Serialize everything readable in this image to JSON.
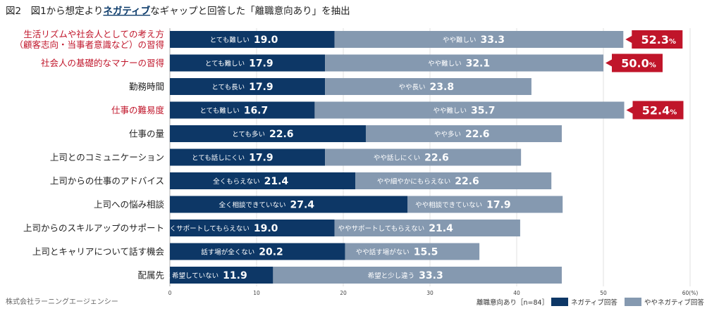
{
  "title": {
    "prefix": "図2　図1から想定より",
    "emphasis": "ネガティブ",
    "suffix": "なギャップと回答した「離職意向あり」を抽出"
  },
  "footer": {
    "source": "株式会社ラーニングエージェンシー"
  },
  "legend": {
    "sample": "離職意向あり［n=84］",
    "items": [
      {
        "name": "ネガティブ回答",
        "color": "#0d3766"
      },
      {
        "name": "ややネガティブ回答",
        "color": "#8599b0"
      }
    ]
  },
  "colors": {
    "strong": "#0d3766",
    "mild": "#8599b0",
    "highlight": "#c0152a",
    "grid": "#d9d9d9"
  },
  "chart_data": {
    "type": "bar",
    "orientation": "horizontal",
    "stacked": true,
    "xlim": [
      0,
      60
    ],
    "x_ticks": [
      "0",
      "10",
      "20",
      "30",
      "40",
      "50",
      "60(%)"
    ],
    "grid": true,
    "legend_position": "bottom-right",
    "categories": [
      {
        "label": [
          "生活リズムや社会人としての考え方",
          "（顧客志向・当事者意識など）の習得"
        ],
        "highlight": true
      },
      {
        "label": [
          "社会人の基礎的なマナーの習得"
        ],
        "highlight": true
      },
      {
        "label": [
          "勤務時間"
        ],
        "highlight": false
      },
      {
        "label": [
          "仕事の難易度"
        ],
        "highlight": true
      },
      {
        "label": [
          "仕事の量"
        ],
        "highlight": false
      },
      {
        "label": [
          "上司とのコミュニケーション"
        ],
        "highlight": false
      },
      {
        "label": [
          "上司からの仕事のアドバイス"
        ],
        "highlight": false
      },
      {
        "label": [
          "上司への悩み相談"
        ],
        "highlight": false
      },
      {
        "label": [
          "上司からのスキルアップのサポート"
        ],
        "highlight": false
      },
      {
        "label": [
          "上司とキャリアについて話す機会"
        ],
        "highlight": false
      },
      {
        "label": [
          "配属先"
        ],
        "highlight": false
      }
    ],
    "series": [
      {
        "name": "ネガティブ回答",
        "values": [
          19.0,
          17.9,
          17.9,
          16.7,
          22.6,
          17.9,
          21.4,
          27.4,
          19.0,
          20.2,
          11.9
        ],
        "value_labels": [
          "19.0",
          "17.9",
          "17.9",
          "16.7",
          "22.6",
          "17.9",
          "21.4",
          "27.4",
          "19.0",
          "20.2",
          "11.9"
        ],
        "segment_labels": [
          "とても難しい",
          "とても難しい",
          "とても長い",
          "とても難しい",
          "とても多い",
          "とても話しにくい",
          "全くもらえない",
          "全く相談できていない",
          "全くサポートしてもらえない",
          "話す場が全くない",
          "全く希望していない"
        ]
      },
      {
        "name": "ややネガティブ回答",
        "values": [
          33.3,
          32.1,
          23.8,
          35.7,
          22.6,
          22.6,
          22.6,
          17.9,
          21.4,
          15.5,
          33.3
        ],
        "value_labels": [
          "33.3",
          "32.1",
          "23.8",
          "35.7",
          "22.6",
          "22.6",
          "22.6",
          "17.9",
          "21.4",
          "15.5",
          "33.3"
        ],
        "segment_labels": [
          "やや難しい",
          "やや難しい",
          "やや長い",
          "やや難しい",
          "やや多い",
          "やや話しにくい",
          "やや細やかにもらえない",
          "やや相談できていない",
          "ややサポートしてもらえない",
          "やや話す場がない",
          "希望と少し違う"
        ]
      }
    ],
    "totals": [
      {
        "row": 0,
        "value": "52.3",
        "unit": "%"
      },
      {
        "row": 1,
        "value": "50.0",
        "unit": "%"
      },
      {
        "row": 3,
        "value": "52.4",
        "unit": "%"
      }
    ]
  }
}
